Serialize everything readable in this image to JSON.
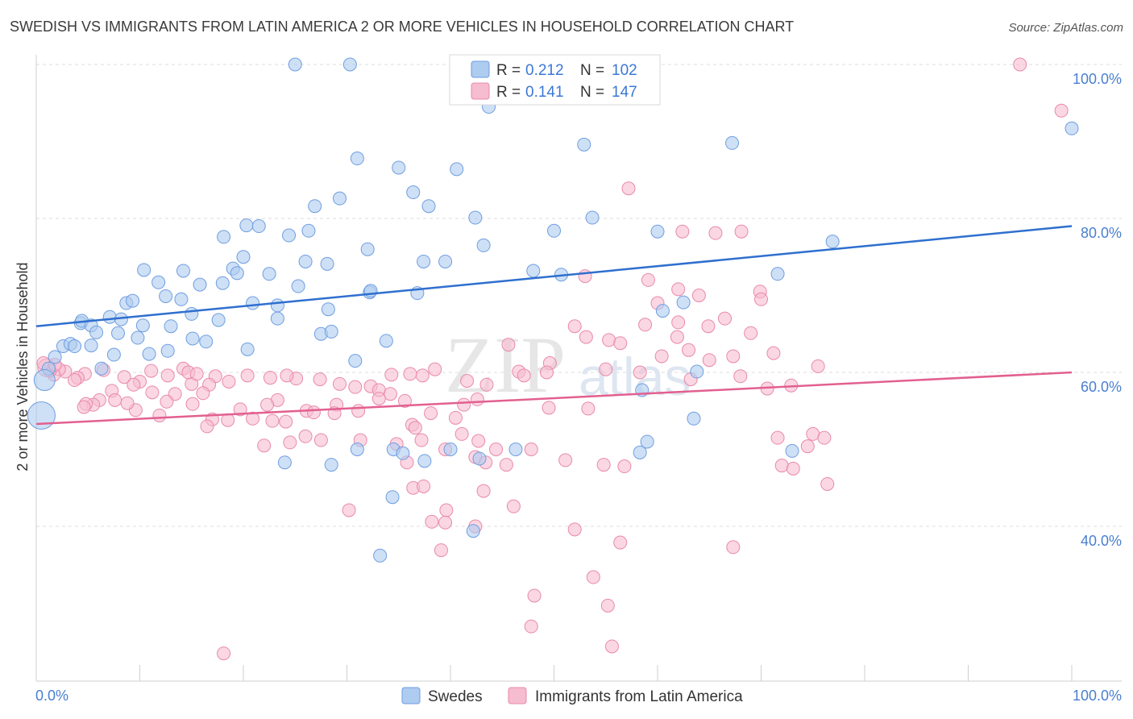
{
  "header": {
    "title": "SWEDISH VS IMMIGRANTS FROM LATIN AMERICA 2 OR MORE VEHICLES IN HOUSEHOLD CORRELATION CHART",
    "source": "Source: ZipAtlas.com"
  },
  "watermark": {
    "zip": "ZIP",
    "atlas": "atlas"
  },
  "legend_top": {
    "rows": [
      {
        "r_label": "R = ",
        "r_value": "0.212",
        "n_label": "N = ",
        "n_value": "102",
        "color": "#aecbf0"
      },
      {
        "r_label": "R = ",
        "r_value": "0.141",
        "n_label": "N = ",
        "n_value": "147",
        "color": "#f6bcd0"
      }
    ]
  },
  "legend_bottom": {
    "items": [
      {
        "label": "Swedes",
        "color": "#aecbf0"
      },
      {
        "label": "Immigrants from Latin America",
        "color": "#f6bcd0"
      }
    ]
  },
  "chart_data": {
    "type": "scatter",
    "title": "SWEDISH VS IMMIGRANTS FROM LATIN AMERICA 2 OR MORE VEHICLES IN HOUSEHOLD CORRELATION CHART",
    "xlabel": "",
    "ylabel": "2 or more Vehicles in Household",
    "xlim": [
      0,
      100
    ],
    "ylim": [
      18,
      102
    ],
    "x_tick_labels": [
      "0.0%",
      "100.0%"
    ],
    "y_ticks": [
      40,
      60,
      80,
      100
    ],
    "y_tick_labels": [
      "40.0%",
      "60.0%",
      "80.0%",
      "100.0%"
    ],
    "grid": true,
    "legend_position": "top-center",
    "series": [
      {
        "name": "Swedes",
        "color": "#6f9ee0",
        "fill": "#aecbf0",
        "trend": {
          "x": [
            0,
            100
          ],
          "y": [
            66.0,
            79.0
          ],
          "color": "#2f6fcf"
        },
        "points": [
          [
            25,
            100
          ],
          [
            30.3,
            100
          ],
          [
            43.7,
            94.5
          ],
          [
            52.9,
            89.6
          ],
          [
            67.2,
            89.8
          ],
          [
            100,
            91.7
          ],
          [
            31,
            87.8
          ],
          [
            35,
            86.6
          ],
          [
            40.6,
            86.4
          ],
          [
            36.4,
            83.4
          ],
          [
            29.3,
            82.6
          ],
          [
            37.9,
            81.6
          ],
          [
            26.9,
            81.6
          ],
          [
            42.4,
            80.1
          ],
          [
            53.7,
            80.1
          ],
          [
            20.3,
            79.1
          ],
          [
            21.5,
            79.0
          ],
          [
            18.1,
            77.6
          ],
          [
            24.4,
            77.8
          ],
          [
            26.3,
            78.4
          ],
          [
            50,
            78.4
          ],
          [
            43.2,
            76.5
          ],
          [
            32,
            76.0
          ],
          [
            76.9,
            77.0
          ],
          [
            20,
            75.0
          ],
          [
            26,
            74.4
          ],
          [
            28.1,
            74.1
          ],
          [
            37.4,
            74.4
          ],
          [
            39.5,
            74.4
          ],
          [
            19,
            73.5
          ],
          [
            14.2,
            73.2
          ],
          [
            10.4,
            73.3
          ],
          [
            19.4,
            72.9
          ],
          [
            22.5,
            72.8
          ],
          [
            48,
            73.2
          ],
          [
            50.7,
            72.7
          ],
          [
            71.6,
            72.8
          ],
          [
            11.8,
            71.7
          ],
          [
            15.8,
            71.4
          ],
          [
            25.3,
            71.2
          ],
          [
            18,
            71.6
          ],
          [
            32.2,
            70.4
          ],
          [
            36.8,
            70.3
          ],
          [
            32.3,
            70.6
          ],
          [
            12.5,
            69.9
          ],
          [
            14,
            69.5
          ],
          [
            8.7,
            69.0
          ],
          [
            9.3,
            69.3
          ],
          [
            20.9,
            69.0
          ],
          [
            23.3,
            68.7
          ],
          [
            60.5,
            68.0
          ],
          [
            62.5,
            69.1
          ],
          [
            28.2,
            68.2
          ],
          [
            7.1,
            67.2
          ],
          [
            15,
            67.6
          ],
          [
            4.3,
            66.4
          ],
          [
            4.4,
            66.7
          ],
          [
            5.3,
            66.1
          ],
          [
            8.2,
            66.9
          ],
          [
            10.3,
            66.1
          ],
          [
            23.3,
            67.0
          ],
          [
            17.6,
            66.8
          ],
          [
            13,
            66.0
          ],
          [
            5.8,
            65.2
          ],
          [
            7.9,
            65.1
          ],
          [
            27.5,
            65.0
          ],
          [
            28.5,
            65.3
          ],
          [
            15.1,
            64.4
          ],
          [
            16.4,
            64.0
          ],
          [
            9.8,
            64.5
          ],
          [
            33.8,
            64.1
          ],
          [
            5.3,
            63.5
          ],
          [
            2.6,
            63.4
          ],
          [
            3.3,
            63.7
          ],
          [
            3.7,
            63.4
          ],
          [
            12.7,
            62.8
          ],
          [
            20.4,
            63.0
          ],
          [
            10.9,
            62.4
          ],
          [
            7.5,
            62.3
          ],
          [
            1.8,
            62.0
          ],
          [
            30.8,
            61.5
          ],
          [
            1.2,
            60.5
          ],
          [
            6.3,
            60.5
          ],
          [
            63.8,
            60.1
          ],
          [
            0.8,
            59.0
          ],
          [
            58.5,
            57.7
          ],
          [
            0.5,
            54.4
          ],
          [
            60,
            78.3
          ],
          [
            46.3,
            50.0
          ],
          [
            34.5,
            50.0
          ],
          [
            31,
            50.0
          ],
          [
            37.5,
            48.5
          ],
          [
            24,
            48.3
          ],
          [
            42.8,
            48.8
          ],
          [
            40,
            50.0
          ],
          [
            58.3,
            49.6
          ],
          [
            73,
            49.8
          ],
          [
            35.4,
            49.5
          ],
          [
            59,
            51.0
          ],
          [
            63.5,
            54.0
          ],
          [
            28.5,
            48.0
          ],
          [
            34.4,
            43.8
          ],
          [
            42.2,
            39.4
          ],
          [
            33.2,
            36.2
          ]
        ]
      },
      {
        "name": "Immigrants from Latin America",
        "color": "#e98aaa",
        "fill": "#f6bcd0",
        "trend": {
          "x": [
            0,
            100
          ],
          "y": [
            53.3,
            60.0
          ],
          "color": "#e2608f"
        },
        "points": [
          [
            95,
            100
          ],
          [
            99,
            94.0
          ],
          [
            57.2,
            83.9
          ],
          [
            62.4,
            78.3
          ],
          [
            65.6,
            78.1
          ],
          [
            68.1,
            78.3
          ],
          [
            53,
            72.5
          ],
          [
            59.1,
            72.0
          ],
          [
            69.9,
            70.5
          ],
          [
            62,
            70.8
          ],
          [
            64,
            70.0
          ],
          [
            60,
            69.0
          ],
          [
            70,
            69.5
          ],
          [
            52,
            66.0
          ],
          [
            58.8,
            66.2
          ],
          [
            62,
            66.5
          ],
          [
            64.9,
            66.0
          ],
          [
            66.5,
            67.0
          ],
          [
            69,
            65.1
          ],
          [
            53.1,
            64.6
          ],
          [
            55.3,
            64.2
          ],
          [
            56.4,
            63.8
          ],
          [
            45.6,
            63.6
          ],
          [
            61.9,
            64.6
          ],
          [
            63,
            62.9
          ],
          [
            60.4,
            62.1
          ],
          [
            65,
            61.6
          ],
          [
            49.6,
            61.2
          ],
          [
            67.3,
            62.1
          ],
          [
            71.2,
            62.5
          ],
          [
            75.5,
            60.8
          ],
          [
            55,
            60.4
          ],
          [
            49.3,
            60.0
          ],
          [
            58.3,
            60.0
          ],
          [
            46.6,
            60.1
          ],
          [
            47.1,
            59.6
          ],
          [
            38.5,
            60.4
          ],
          [
            37.3,
            59.6
          ],
          [
            36.1,
            59.8
          ],
          [
            34.3,
            59.7
          ],
          [
            43.5,
            58.4
          ],
          [
            41.6,
            58.9
          ],
          [
            63.2,
            59.1
          ],
          [
            68,
            59.5
          ],
          [
            72.9,
            58.3
          ],
          [
            70.6,
            57.9
          ],
          [
            32.3,
            58.2
          ],
          [
            33.1,
            57.7
          ],
          [
            34.2,
            57.2
          ],
          [
            29.3,
            58.5
          ],
          [
            27.4,
            59.1
          ],
          [
            30.8,
            58.1
          ],
          [
            25.1,
            59.2
          ],
          [
            22.6,
            59.3
          ],
          [
            24.2,
            59.6
          ],
          [
            20.4,
            59.6
          ],
          [
            17.3,
            59.5
          ],
          [
            15,
            58.5
          ],
          [
            12.7,
            59.6
          ],
          [
            11.1,
            60.2
          ],
          [
            10,
            58.8
          ],
          [
            8.5,
            59.4
          ],
          [
            6.5,
            60.3
          ],
          [
            4.7,
            59.8
          ],
          [
            4,
            59.3
          ],
          [
            3.7,
            59.0
          ],
          [
            2.8,
            60.1
          ],
          [
            2.2,
            60.4
          ],
          [
            1.7,
            59.7
          ],
          [
            1.3,
            60.2
          ],
          [
            1.0,
            60.6
          ],
          [
            0.7,
            61.2
          ],
          [
            1.8,
            61.0
          ],
          [
            14.2,
            60.5
          ],
          [
            14.7,
            60.0
          ],
          [
            15.5,
            59.8
          ],
          [
            16.7,
            58.4
          ],
          [
            18.6,
            58.8
          ],
          [
            16.1,
            57.3
          ],
          [
            13.4,
            57.2
          ],
          [
            11.2,
            57.4
          ],
          [
            9.4,
            58.4
          ],
          [
            7.3,
            57.6
          ],
          [
            6.1,
            56.4
          ],
          [
            5.5,
            55.8
          ],
          [
            7.6,
            56.4
          ],
          [
            12.6,
            56.2
          ],
          [
            15.1,
            55.9
          ],
          [
            19.7,
            55.2
          ],
          [
            20.9,
            54.0
          ],
          [
            18.5,
            53.8
          ],
          [
            22.8,
            53.7
          ],
          [
            24.1,
            53.6
          ],
          [
            26.1,
            55.0
          ],
          [
            29,
            55.8
          ],
          [
            31.1,
            55.0
          ],
          [
            33.1,
            56.6
          ],
          [
            35.6,
            56.3
          ],
          [
            38.1,
            54.7
          ],
          [
            40.5,
            54.1
          ],
          [
            41.3,
            55.8
          ],
          [
            42.6,
            56.5
          ],
          [
            26.8,
            54.8
          ],
          [
            28.8,
            54.7
          ],
          [
            23.3,
            56.4
          ],
          [
            22.3,
            55.8
          ],
          [
            17,
            53.9
          ],
          [
            16.5,
            53.0
          ],
          [
            11.9,
            54.4
          ],
          [
            9.6,
            55.1
          ],
          [
            8.8,
            56.0
          ],
          [
            4.8,
            55.9
          ],
          [
            4.6,
            55.5
          ],
          [
            49.5,
            55.4
          ],
          [
            53.3,
            55.3
          ],
          [
            36.3,
            53.2
          ],
          [
            36.6,
            52.8
          ],
          [
            37.2,
            51.2
          ],
          [
            24.5,
            50.9
          ],
          [
            22,
            50.5
          ],
          [
            26,
            51.7
          ],
          [
            27.5,
            51.2
          ],
          [
            31.3,
            51.2
          ],
          [
            41.1,
            52.0
          ],
          [
            42.7,
            51.1
          ],
          [
            34.8,
            50.7
          ],
          [
            39.5,
            50.0
          ],
          [
            44.4,
            50.0
          ],
          [
            47.8,
            50.0
          ],
          [
            71.6,
            51.5
          ],
          [
            75,
            52.0
          ],
          [
            76.1,
            51.5
          ],
          [
            74.5,
            50.4
          ],
          [
            35.8,
            48.3
          ],
          [
            42.4,
            49.0
          ],
          [
            43.4,
            48.3
          ],
          [
            45.4,
            48.0
          ],
          [
            51.1,
            48.6
          ],
          [
            54.8,
            48.0
          ],
          [
            56.8,
            47.8
          ],
          [
            72,
            47.9
          ],
          [
            73.1,
            47.5
          ],
          [
            76.4,
            45.5
          ],
          [
            36.4,
            45.0
          ],
          [
            37.4,
            45.2
          ],
          [
            43.2,
            44.6
          ],
          [
            46.1,
            42.6
          ],
          [
            39.6,
            42.1
          ],
          [
            30.2,
            42.1
          ],
          [
            38.2,
            40.6
          ],
          [
            39.5,
            40.5
          ],
          [
            42.4,
            40.0
          ],
          [
            52,
            39.6
          ],
          [
            56.4,
            37.9
          ],
          [
            67.3,
            37.3
          ],
          [
            39.1,
            36.9
          ],
          [
            48.1,
            31.0
          ],
          [
            53.8,
            33.4
          ],
          [
            55.2,
            29.7
          ],
          [
            47.8,
            27.0
          ],
          [
            55.6,
            24.4
          ],
          [
            18.1,
            23.5
          ]
        ]
      }
    ]
  }
}
